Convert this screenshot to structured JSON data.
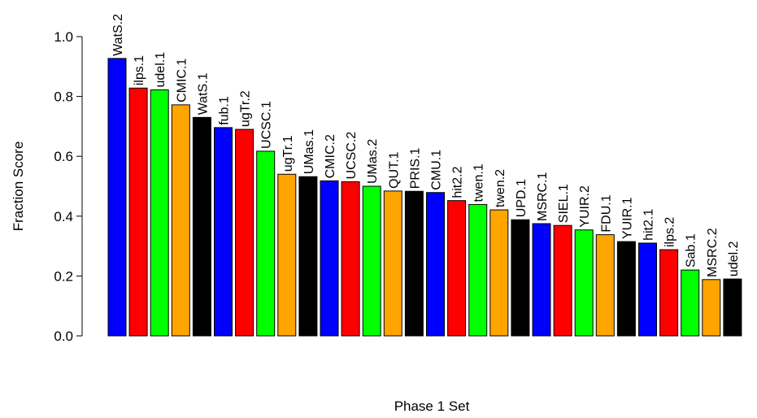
{
  "chart_data": {
    "type": "bar",
    "title": "",
    "xlabel": "Phase 1 Set",
    "ylabel": "Fraction Score",
    "ylim": [
      0,
      1.0
    ],
    "yticks": [
      "0.0",
      "0.2",
      "0.4",
      "0.6",
      "0.8",
      "1.0"
    ],
    "grid": false,
    "colors": {
      "blue": "#0000ff",
      "red": "#ff0000",
      "green": "#00ff00",
      "orange": "#ffa500",
      "black": "#000000"
    },
    "categories": [
      "WatS.2",
      "ilps.1",
      "udel.1",
      "CMIC.1",
      "WatS.1",
      "fub.1",
      "ugTr.2",
      "UCSC.1",
      "ugTr.1",
      "UMas.1",
      "CMIC.2",
      "UCSC.2",
      "UMas.2",
      "QUT.1",
      "PRIS.1",
      "CMU.1",
      "hit2.2",
      "twen.1",
      "twen.2",
      "UPD.1",
      "MSRC.1",
      "SIEL.1",
      "YUIR.2",
      "FDU.1",
      "YUIR.1",
      "hit2.1",
      "ilps.2",
      "Sab.1",
      "MSRC.2",
      "udel.2"
    ],
    "values": [
      0.927,
      0.828,
      0.822,
      0.772,
      0.73,
      0.696,
      0.69,
      0.617,
      0.54,
      0.532,
      0.518,
      0.515,
      0.5,
      0.484,
      0.483,
      0.479,
      0.452,
      0.439,
      0.421,
      0.388,
      0.375,
      0.369,
      0.354,
      0.338,
      0.315,
      0.31,
      0.288,
      0.22,
      0.188,
      0.19
    ],
    "bar_colors": [
      "blue",
      "red",
      "green",
      "orange",
      "black",
      "blue",
      "red",
      "green",
      "orange",
      "black",
      "blue",
      "red",
      "green",
      "orange",
      "black",
      "blue",
      "red",
      "green",
      "orange",
      "black",
      "blue",
      "red",
      "green",
      "orange",
      "black",
      "blue",
      "red",
      "green",
      "orange",
      "black"
    ]
  }
}
